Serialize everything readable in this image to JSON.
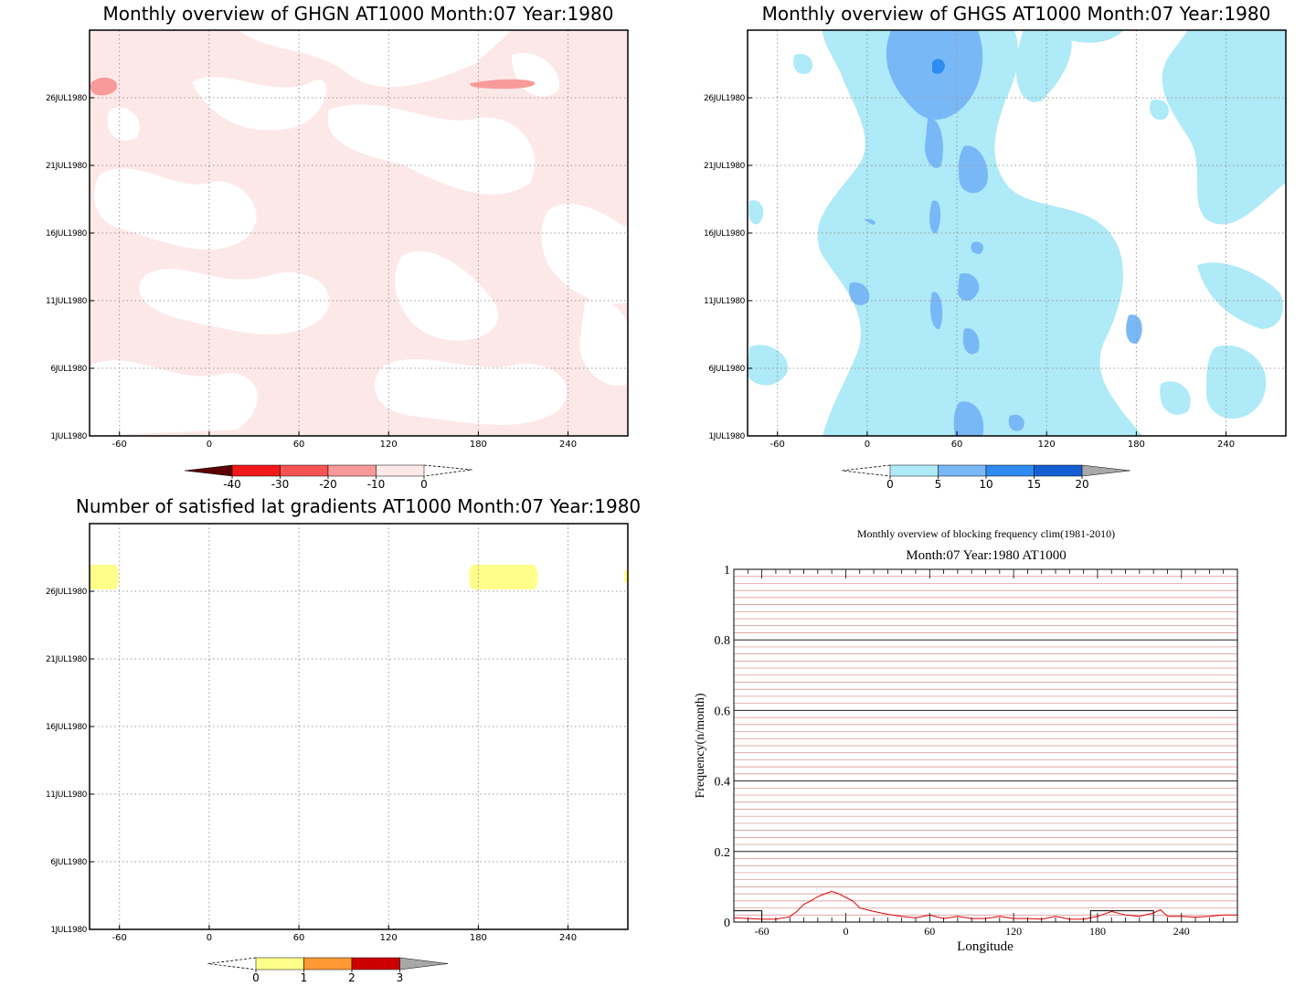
{
  "colors": {
    "pink_light": "#fde8e8",
    "pink_mid": "#f99a9a",
    "red": "#f01818",
    "red_mid": "#f75353",
    "dark_red": "#5a0000",
    "cyan_light": "#aeeaf7",
    "blue_mid": "#79b8f7",
    "blue": "#2e8bf0",
    "blue_dark": "#155fd4",
    "yellow": "#fefe8a",
    "orange": "#ff9933",
    "crimson": "#cc0000",
    "gray": "#a8a8a8",
    "plot_red": "#e00000"
  },
  "chart_data": [
    {
      "type": "heatmap",
      "title": "Monthly overview of GHGN AT1000 Month:07 Year:1980",
      "x_ticks": [
        "-60",
        "0",
        "60",
        "120",
        "180",
        "240"
      ],
      "x_tick_values": [
        -60,
        0,
        60,
        120,
        180,
        240
      ],
      "xlim": [
        -80,
        280
      ],
      "y_ticks": [
        "1JUL1980",
        "6JUL1980",
        "11JUL1980",
        "16JUL1980",
        "21JUL1980",
        "26JUL1980"
      ],
      "y_tick_values": [
        1,
        6,
        11,
        16,
        21,
        26
      ],
      "ylim": [
        1,
        31
      ],
      "grid": true,
      "colorbar": {
        "labels": [
          "-40",
          "-30",
          "-20",
          "-10",
          "0"
        ],
        "colors": [
          "#5a0000",
          "#f01818",
          "#f75353",
          "#f99a9a",
          "#fde8e8"
        ],
        "open_end": "right"
      },
      "features": [
        {
          "shade": "-10 to 0",
          "extent": "most of domain, patchy"
        },
        {
          "shade": "-20 to -10",
          "lon": [
            -80,
            -70
          ],
          "day": [
            26,
            27.5
          ]
        },
        {
          "shade": "-20 to -10",
          "lon": [
            175,
            215
          ],
          "day": [
            26.5,
            27.2
          ]
        }
      ]
    },
    {
      "type": "heatmap",
      "title": "Monthly overview of GHGS AT1000 Month:07 Year:1980",
      "x_ticks": [
        "-60",
        "0",
        "60",
        "120",
        "180",
        "240"
      ],
      "x_tick_values": [
        -60,
        0,
        60,
        120,
        180,
        240
      ],
      "xlim": [
        -80,
        280
      ],
      "y_ticks": [
        "1JUL1980",
        "6JUL1980",
        "11JUL1980",
        "16JUL1980",
        "21JUL1980",
        "26JUL1980"
      ],
      "y_tick_values": [
        1,
        6,
        11,
        16,
        21,
        26
      ],
      "ylim": [
        1,
        31
      ],
      "grid": true,
      "colorbar": {
        "labels": [
          "0",
          "5",
          "10",
          "15",
          "20"
        ],
        "colors": [
          "#aeeaf7",
          "#79b8f7",
          "#2e8bf0",
          "#155fd4",
          "#a8a8a8"
        ],
        "open_end": "left"
      },
      "features": [
        {
          "shade": "0 to 5",
          "extent": "large patchy area"
        },
        {
          "shade": "5 to 10",
          "lon": [
            10,
            75
          ],
          "day": [
            23,
            30.5
          ]
        },
        {
          "shade": "10 to 15",
          "lon": [
            42,
            47
          ],
          "day": [
            27.3,
            28.4
          ]
        }
      ]
    },
    {
      "type": "heatmap",
      "title": "Number of satisfied lat gradients AT1000 Month:07 Year:1980",
      "x_ticks": [
        "-60",
        "0",
        "60",
        "120",
        "180",
        "240"
      ],
      "x_tick_values": [
        -60,
        0,
        60,
        120,
        180,
        240
      ],
      "xlim": [
        -80,
        280
      ],
      "y_ticks": [
        "1JUL1980",
        "6JUL1980",
        "11JUL1980",
        "16JUL1980",
        "21JUL1980",
        "26JUL1980"
      ],
      "y_tick_values": [
        1,
        6,
        11,
        16,
        21,
        26
      ],
      "ylim": [
        1,
        31
      ],
      "grid": true,
      "colorbar": {
        "labels": [
          "0",
          "1",
          "2",
          "3"
        ],
        "colors": [
          "#fefe8a",
          "#ff9933",
          "#cc0000",
          "#a8a8a8"
        ],
        "open_end": "left"
      },
      "features": [
        {
          "value": 1,
          "lon": [
            -80,
            -60
          ],
          "day": [
            26,
            28
          ]
        },
        {
          "value": 1,
          "lon": [
            175,
            220
          ],
          "day": [
            26,
            28
          ]
        },
        {
          "value": 1,
          "lon": [
            278,
            280
          ],
          "day": [
            26.5,
            27.5
          ]
        }
      ]
    },
    {
      "type": "line",
      "title": "Monthly overview of blocking frequency clim(1981-2010)",
      "subtitle": "Month:07 Year:1980  AT1000",
      "xlabel": "Longitude",
      "ylabel": "Frequency(n/month)",
      "x_ticks": [
        "-60",
        "0",
        "60",
        "120",
        "180",
        "240"
      ],
      "x_tick_values": [
        -60,
        0,
        60,
        120,
        180,
        240
      ],
      "xlim": [
        -80,
        280
      ],
      "y_ticks": [
        "0",
        "0.2",
        "0.4",
        "0.6",
        "0.8",
        "1"
      ],
      "y_tick_values": [
        0,
        0.2,
        0.4,
        0.6,
        0.8,
        1
      ],
      "ylim": [
        0,
        1
      ],
      "grid": true,
      "series": [
        {
          "color": "#e00000",
          "x": [
            -80,
            -70,
            -60,
            -50,
            -40,
            -35,
            -30,
            -25,
            -20,
            -15,
            -10,
            -5,
            0,
            5,
            10,
            20,
            30,
            40,
            50,
            60,
            70,
            80,
            90,
            100,
            110,
            120,
            130,
            140,
            150,
            160,
            170,
            180,
            190,
            200,
            210,
            220,
            225,
            230,
            240,
            250,
            260,
            270,
            280
          ],
          "y": [
            0.012,
            0.01,
            0.008,
            0.008,
            0.015,
            0.03,
            0.05,
            0.06,
            0.072,
            0.08,
            0.087,
            0.08,
            0.07,
            0.06,
            0.04,
            0.03,
            0.022,
            0.016,
            0.012,
            0.02,
            0.01,
            0.016,
            0.01,
            0.01,
            0.016,
            0.01,
            0.01,
            0.008,
            0.016,
            0.008,
            0.008,
            0.016,
            0.03,
            0.02,
            0.016,
            0.026,
            0.035,
            0.016,
            0.016,
            0.014,
            0.016,
            0.02,
            0.02
          ]
        },
        {
          "color": "#000000",
          "x": [
            -80,
            -60,
            -60,
            175,
            175,
            220,
            220,
            280
          ],
          "y": [
            0.032,
            0.032,
            0,
            0,
            0.032,
            0.032,
            0,
            0
          ]
        }
      ]
    }
  ]
}
